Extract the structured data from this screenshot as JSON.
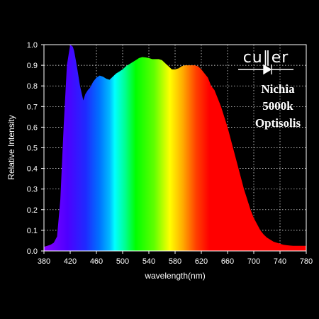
{
  "chart_data": {
    "type": "area",
    "title": "",
    "xlabel": "wavelength(nm)",
    "ylabel": "Relative Intensity",
    "xlim": [
      380,
      780
    ],
    "ylim": [
      0,
      1.0
    ],
    "x_ticks": [
      380,
      420,
      460,
      500,
      540,
      580,
      620,
      660,
      700,
      740,
      780
    ],
    "y_ticks": [
      0.0,
      0.1,
      0.2,
      0.3,
      0.4,
      0.5,
      0.6,
      0.7,
      0.8,
      0.9,
      1.0
    ],
    "y_tick_labels": [
      "0.0",
      "0.1",
      "0.2",
      "0.3",
      "0.4",
      "0.5",
      "0.6",
      "0.7",
      "0.8",
      "0.9",
      "1.0"
    ],
    "grid": true,
    "fill": "wavelength-spectrum",
    "x": [
      380,
      385,
      390,
      395,
      400,
      405,
      410,
      415,
      420,
      424,
      426,
      430,
      435,
      440,
      443,
      447,
      450,
      455,
      460,
      465,
      470,
      475,
      480,
      485,
      490,
      495,
      500,
      505,
      510,
      515,
      520,
      525,
      530,
      535,
      540,
      545,
      550,
      555,
      560,
      565,
      570,
      575,
      580,
      585,
      590,
      595,
      600,
      605,
      610,
      615,
      620,
      625,
      630,
      635,
      640,
      645,
      650,
      655,
      660,
      665,
      670,
      675,
      680,
      685,
      690,
      695,
      700,
      705,
      710,
      715,
      720,
      725,
      730,
      735,
      740,
      745,
      750,
      755,
      760,
      765,
      770,
      775,
      780
    ],
    "values": [
      0.02,
      0.025,
      0.03,
      0.04,
      0.07,
      0.25,
      0.6,
      0.9,
      1.0,
      0.99,
      0.97,
      0.9,
      0.8,
      0.73,
      0.76,
      0.78,
      0.79,
      0.82,
      0.84,
      0.85,
      0.845,
      0.835,
      0.83,
      0.845,
      0.86,
      0.87,
      0.88,
      0.895,
      0.905,
      0.915,
      0.925,
      0.935,
      0.94,
      0.938,
      0.935,
      0.93,
      0.93,
      0.93,
      0.925,
      0.91,
      0.895,
      0.88,
      0.88,
      0.885,
      0.895,
      0.9,
      0.9,
      0.9,
      0.9,
      0.895,
      0.88,
      0.86,
      0.84,
      0.8,
      0.78,
      0.74,
      0.7,
      0.65,
      0.6,
      0.54,
      0.48,
      0.42,
      0.36,
      0.3,
      0.25,
      0.2,
      0.16,
      0.13,
      0.1,
      0.08,
      0.065,
      0.055,
      0.045,
      0.04,
      0.035,
      0.03,
      0.028,
      0.026,
      0.025,
      0.025,
      0.025,
      0.025,
      0.025
    ]
  },
  "brand": {
    "logo_text": "cu∥er",
    "annotation_lines": [
      "Nichia",
      "5000k",
      "Optisolis"
    ]
  },
  "colors": {
    "background": "#000000",
    "plot_background": "#000000",
    "grid": "#ffffff",
    "text": "#ffffff"
  }
}
